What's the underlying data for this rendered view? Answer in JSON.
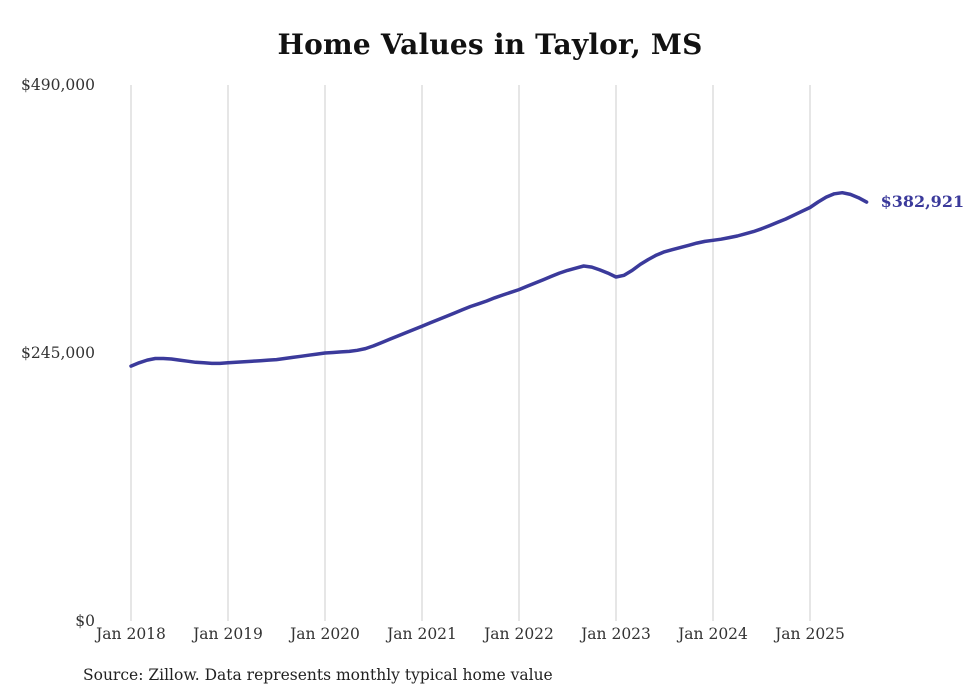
{
  "chart": {
    "title": "Home Values in Taylor, MS",
    "source": "Source: Zillow. Data represents monthly typical home value",
    "end_label": "$382,921",
    "line_color": "#3b3a9b",
    "grid_color": "#cccccc"
  },
  "chart_data": {
    "type": "line",
    "title": "Home Values in Taylor, MS",
    "xlabel": "",
    "ylabel": "",
    "ylim": [
      0,
      490000
    ],
    "grid": "vertical-only",
    "legend_position": "none",
    "x_start_month": "Jan 2018",
    "x_end_month": "Aug 2025",
    "x_tick_labels": [
      "Jan 2018",
      "Jan 2019",
      "Jan 2020",
      "Jan 2021",
      "Jan 2022",
      "Jan 2023",
      "Jan 2024",
      "Jan 2025"
    ],
    "y_ticks": [
      {
        "value": 0,
        "label": "$0"
      },
      {
        "value": 245000,
        "label": "$245,000"
      },
      {
        "value": 490000,
        "label": "$490,000"
      }
    ],
    "latest_value": 382921,
    "annotation": "$382,921",
    "series": [
      {
        "name": "Monthly typical home value",
        "values": [
          233000,
          236000,
          238500,
          240000,
          240000,
          239500,
          238500,
          237500,
          236500,
          236000,
          235500,
          235500,
          236000,
          236500,
          237000,
          237500,
          238000,
          238500,
          239000,
          240000,
          241000,
          242000,
          243000,
          244000,
          245000,
          245500,
          246000,
          246500,
          247500,
          249000,
          251500,
          254500,
          257500,
          260500,
          263500,
          266500,
          269500,
          272500,
          275500,
          278500,
          281500,
          284500,
          287500,
          290000,
          292500,
          295500,
          298000,
          300500,
          303000,
          306000,
          309000,
          312000,
          315000,
          318000,
          320500,
          322500,
          324500,
          323500,
          321000,
          318000,
          314500,
          316000,
          320500,
          326000,
          330500,
          334500,
          337500,
          339500,
          341500,
          343500,
          345500,
          347000,
          348000,
          349000,
          350500,
          352000,
          354000,
          356000,
          358500,
          361500,
          364500,
          367500,
          371000,
          374500,
          378000,
          383000,
          387500,
          390500,
          391500,
          390000,
          387000,
          382921
        ]
      }
    ]
  }
}
